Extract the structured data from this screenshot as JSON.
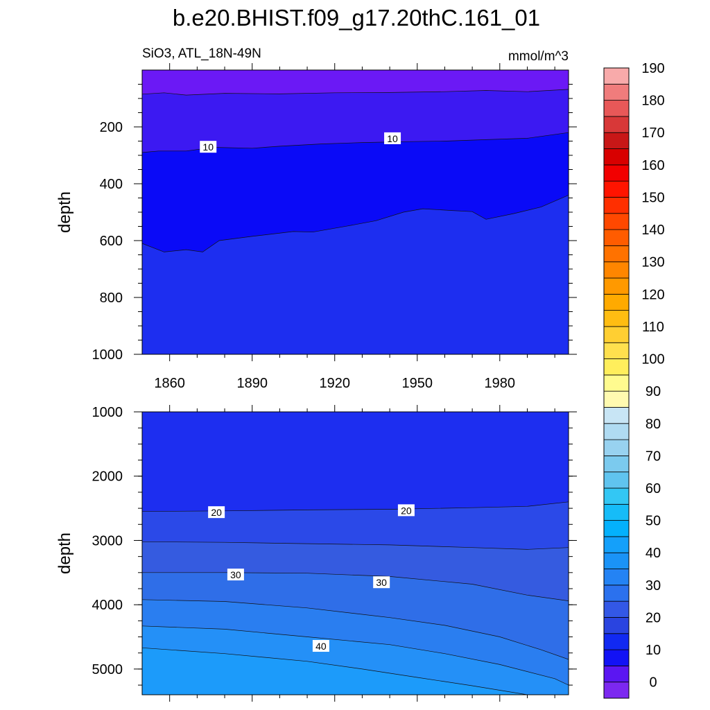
{
  "figure": {
    "title": "b.e20.BHIST.f09_g17.20thC.161_01",
    "subtitle_left": "SiO3, ATL_18N-49N",
    "subtitle_right": "mmol/m^3"
  },
  "chart_data": [
    {
      "type": "heatmap",
      "panel": "upper",
      "ylabel": "depth",
      "xlabel": "",
      "x_range": [
        1850,
        2005
      ],
      "y_range": [
        0,
        1000
      ],
      "y_inverted": true,
      "xticks": [
        "1860",
        "1890",
        "1920",
        "1950",
        "1980"
      ],
      "yticks": [
        "200",
        "400",
        "600",
        "800",
        "1000"
      ],
      "contour_labels": [
        {
          "text": "10",
          "x": 1874,
          "y": 270
        },
        {
          "text": "10",
          "x": 1941,
          "y": 240
        }
      ],
      "bands": [
        {
          "level_from": 0,
          "level_to": 5,
          "color": "#6b19f5",
          "lower_boundary": [
            [
              1850,
              85
            ],
            [
              1858,
              80
            ],
            [
              1866,
              88
            ],
            [
              1880,
              82
            ],
            [
              1900,
              84
            ],
            [
              1920,
              80
            ],
            [
              1940,
              79
            ],
            [
              1960,
              76
            ],
            [
              1975,
              72
            ],
            [
              1990,
              76
            ],
            [
              2005,
              68
            ]
          ]
        },
        {
          "level_from": 5,
          "level_to": 10,
          "color": "#3c19f2",
          "lower_boundary": [
            [
              1850,
              290
            ],
            [
              1856,
              285
            ],
            [
              1866,
              285
            ],
            [
              1876,
              272
            ],
            [
              1890,
              275
            ],
            [
              1900,
              268
            ],
            [
              1915,
              260
            ],
            [
              1930,
              255
            ],
            [
              1945,
              252
            ],
            [
              1960,
              250
            ],
            [
              1975,
              245
            ],
            [
              1990,
              240
            ],
            [
              2005,
              220
            ]
          ]
        },
        {
          "level_from": 10,
          "level_to": 15,
          "color": "#0a0af7",
          "lower_boundary": [
            [
              1850,
              610
            ],
            [
              1858,
              640
            ],
            [
              1866,
              632
            ],
            [
              1872,
              640
            ],
            [
              1878,
              600
            ],
            [
              1890,
              585
            ],
            [
              1905,
              568
            ],
            [
              1912,
              570
            ],
            [
              1925,
              548
            ],
            [
              1935,
              530
            ],
            [
              1945,
              500
            ],
            [
              1952,
              488
            ],
            [
              1962,
              494
            ],
            [
              1970,
              498
            ],
            [
              1975,
              525
            ],
            [
              1985,
              505
            ],
            [
              1995,
              482
            ],
            [
              2005,
              440
            ]
          ]
        },
        {
          "level_from": 15,
          "level_to": 20,
          "color": "#1d2ef0",
          "lower_boundary": []
        }
      ]
    },
    {
      "type": "heatmap",
      "panel": "lower",
      "ylabel": "depth",
      "xlabel": "",
      "x_range": [
        1850,
        2005
      ],
      "y_range": [
        1000,
        5400
      ],
      "y_inverted": true,
      "xticks": [],
      "yticks": [
        "1000",
        "2000",
        "3000",
        "4000",
        "5000"
      ],
      "contour_labels": [
        {
          "text": "20",
          "x": 1877,
          "y": 2560
        },
        {
          "text": "20",
          "x": 1946,
          "y": 2530
        },
        {
          "text": "30",
          "x": 1884,
          "y": 3530
        },
        {
          "text": "30",
          "x": 1937,
          "y": 3650
        },
        {
          "text": "40",
          "x": 1915,
          "y": 4640
        }
      ],
      "bands": [
        {
          "level_from": 15,
          "level_to": 20,
          "color": "#1d2ef0",
          "lower_boundary": [
            [
              1850,
              2550
            ],
            [
              1880,
              2540
            ],
            [
              1910,
              2525
            ],
            [
              1940,
              2515
            ],
            [
              1970,
              2490
            ],
            [
              1990,
              2470
            ],
            [
              2005,
              2400
            ]
          ]
        },
        {
          "level_from": 20,
          "level_to": 25,
          "color": "#2b49e8",
          "lower_boundary": [
            [
              1850,
              3020
            ],
            [
              1880,
              3030
            ],
            [
              1910,
              3050
            ],
            [
              1940,
              3070
            ],
            [
              1970,
              3110
            ],
            [
              1990,
              3140
            ],
            [
              2005,
              3110
            ]
          ]
        },
        {
          "level_from": 25,
          "level_to": 30,
          "color": "#355be0",
          "lower_boundary": [
            [
              1850,
              3500
            ],
            [
              1880,
              3500
            ],
            [
              1910,
              3510
            ],
            [
              1940,
              3560
            ],
            [
              1970,
              3680
            ],
            [
              1990,
              3850
            ],
            [
              2005,
              3940
            ]
          ]
        },
        {
          "level_from": 30,
          "level_to": 35,
          "color": "#2f6ee8",
          "lower_boundary": [
            [
              1850,
              3920
            ],
            [
              1880,
              3950
            ],
            [
              1910,
              4050
            ],
            [
              1940,
              4200
            ],
            [
              1960,
              4320
            ],
            [
              1980,
              4500
            ],
            [
              1995,
              4700
            ],
            [
              2005,
              4850
            ]
          ]
        },
        {
          "level_from": 35,
          "level_to": 40,
          "color": "#2a7ef0",
          "lower_boundary": [
            [
              1850,
              4330
            ],
            [
              1880,
              4380
            ],
            [
              1910,
              4500
            ],
            [
              1940,
              4620
            ],
            [
              1960,
              4760
            ],
            [
              1980,
              4930
            ],
            [
              2000,
              5150
            ],
            [
              2005,
              5250
            ]
          ]
        },
        {
          "level_from": 40,
          "level_to": 45,
          "color": "#2490f7",
          "lower_boundary": [
            [
              1850,
              4670
            ],
            [
              1880,
              4760
            ],
            [
              1910,
              4880
            ],
            [
              1930,
              5000
            ],
            [
              1950,
              5130
            ],
            [
              1970,
              5260
            ],
            [
              1980,
              5330
            ],
            [
              1990,
              5400
            ]
          ]
        },
        {
          "level_from": 45,
          "level_to": 50,
          "color": "#1c9bfa",
          "lower_boundary": []
        }
      ]
    },
    {
      "type": "colorbar",
      "levels": [
        -5,
        0,
        5,
        10,
        15,
        20,
        25,
        30,
        35,
        40,
        45,
        50,
        55,
        60,
        65,
        70,
        75,
        80,
        85,
        90,
        95,
        100,
        105,
        110,
        115,
        120,
        125,
        130,
        135,
        140,
        145,
        150,
        155,
        160,
        165,
        170,
        175,
        180,
        185,
        190,
        195
      ],
      "tick_labels": [
        "0",
        "10",
        "20",
        "30",
        "40",
        "50",
        "60",
        "70",
        "80",
        "90",
        "100",
        "110",
        "120",
        "130",
        "140",
        "150",
        "160",
        "170",
        "180",
        "190"
      ],
      "colors": [
        "#7c28f0",
        "#5b16f2",
        "#1212f5",
        "#1129f2",
        "#2a44e0",
        "#3358e6",
        "#2b71ee",
        "#2483f4",
        "#1a93f7",
        "#14a0fa",
        "#04b1fc",
        "#16bcf8",
        "#33c7f4",
        "#60c4ef",
        "#7bcaee",
        "#98d2f0",
        "#b0dbf2",
        "#c8e5f5",
        "#fffab0",
        "#fffb8f",
        "#ffee5c",
        "#ffe04e",
        "#ffcf32",
        "#ffbd12",
        "#ffaa00",
        "#ff9900",
        "#ff8600",
        "#ff7200",
        "#ff5c00",
        "#ff4800",
        "#ff2f00",
        "#ff1400",
        "#f20000",
        "#d80000",
        "#c81717",
        "#d83838",
        "#e85858",
        "#f07c7c",
        "#f8aaaa"
      ]
    }
  ]
}
